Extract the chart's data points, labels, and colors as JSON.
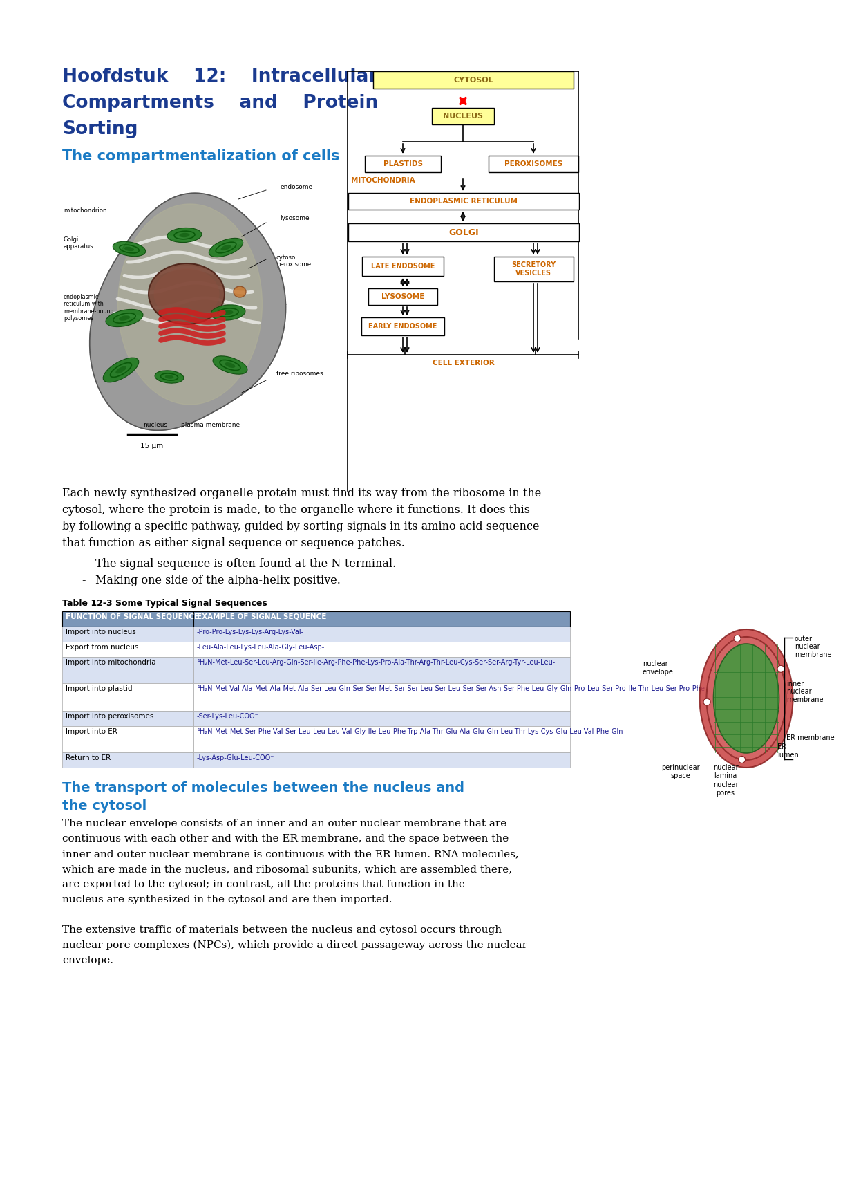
{
  "page_bg": "#ffffff",
  "title_lines": [
    "Hoofdstuk    12:    Intracellular",
    "Compartments    and    Protein",
    "Sorting"
  ],
  "title_color": "#1a3a8f",
  "subtitle_text": "The compartmentalization of cells",
  "subtitle_color": "#1a7ac4",
  "para1": "Each newly synthesized organelle protein must find its way from the ribosome in the cytosol, where the protein is made, to the organelle where it functions. It does this by following a specific pathway, guided by sorting signals in its amino acid sequence that function as either signal sequence or sequence patches.",
  "bullet1": "The signal sequence is often found at the N-terminal.",
  "bullet2": "Making one side of the alpha-helix positive.",
  "table_title": "Table 12-3 Some Typical Signal Sequences",
  "table_header_bg": "#7b96b8",
  "table_row1_bg": "#d9e1f2",
  "table_row2_bg": "#ffffff",
  "table_col1": "FUNCTION OF SIGNAL SEQUENCE",
  "table_col2": "EXAMPLE OF SIGNAL SEQUENCE",
  "table_rows": [
    [
      "Import into nucleus",
      "-Pro-Pro-Lys-Lys-Lys-Arg-Lys-Val-"
    ],
    [
      "Export from nucleus",
      "-Leu-Ala-Leu-Lys-Leu-Ala-Gly-Leu-Asp-"
    ],
    [
      "Import into mitochondria",
      "¹H₂N-Met-Leu-Ser-Leu-Arg-Gln-Ser-Ile-Arg-Phe-Phe-Lys-Pro-Ala-Thr-Arg-Thr-Leu-Cys-Ser-Ser-Arg-Tyr-Leu-Leu-"
    ],
    [
      "Import into plastid",
      "¹H₂N-Met-Val-Ala-Met-Ala-Met-Ala-Ser-Leu-Gln-Ser-Ser-Met-Ser-Ser-Leu-Ser-Leu-Ser-Ser-Asn-Ser-Phe-Leu-Gly-Gln-Pro-Leu-Ser-Pro-Ile-Thr-Leu-Ser-Pro-Phe-Leu-Gln-Gln-Gly-"
    ],
    [
      "Import into peroxisomes",
      "-Ser-Lys-Leu-COO⁻"
    ],
    [
      "Import into ER",
      "¹H₂N-Met-Met-Ser-Phe-Val-Ser-Leu-Leu-Leu-Val-Gly-Ile-Leu-Phe-Trp-Ala-Thr-Glu-Ala-Glu-Gln-Leu-Thr-Lys-Cys-Glu-Leu-Val-Phe-Gln-"
    ],
    [
      "Return to ER",
      "-Lys-Asp-Glu-Leu-COO⁻"
    ]
  ],
  "section2_title_line1": "The transport of molecules between the nucleus and",
  "section2_title_line2": "the cytosol",
  "section2_color": "#1a7ac4",
  "section2_para1": "The nuclear envelope consists of an inner and an outer nuclear membrane that are continuous with each other and with the ER membrane, and the space between the inner and outer nuclear membrane is continuous with the ER lumen. RNA molecules, which are made in the nucleus, and ribosomal subunits, which are assembled there, are exported to the cytosol; in contrast, all the proteins that function in the nucleus are synthesized in the cytosol and are then imported.",
  "section2_para2": "The extensive traffic of materials between the nucleus and cytosol occurs through nuclear pore complexes (NPCs), which provide a direct passageway across the nuclear envelope.",
  "fc_cytosol_color": "#ffff99",
  "fc_nucleus_color": "#ffff99",
  "fc_text_color": "#cc6600",
  "fc_box_edge": "#000000"
}
